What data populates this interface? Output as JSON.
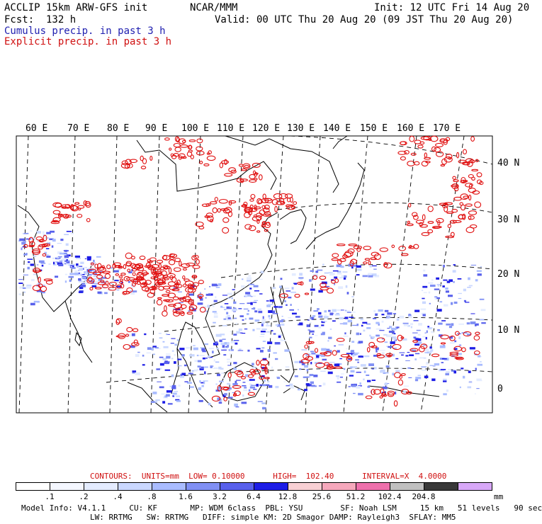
{
  "header": {
    "model_line": "ACCLIP 15km ARW-GFS init",
    "org": "NCAR/MMM",
    "init": "Init: 12 UTC Fri 14 Aug 20",
    "fcst": "Fcst:  132 h",
    "valid": "Valid: 00 UTC Thu 20 Aug 20 (09 JST Thu 20 Aug 20)",
    "cumulus": "Cumulus precip. in past 3 h",
    "explicit": "Explicit precip. in past 3 h"
  },
  "colors": {
    "cumulus": "#2f2fc8",
    "explicit": "#e01010",
    "coast": "#000000",
    "grid": "#000000"
  },
  "map": {
    "lon_labels": [
      "60 E",
      "70 E",
      "80 E",
      "90 E",
      "100 E",
      "110 E",
      "120 E",
      "130 E",
      "140 E",
      "150 E",
      "160 E",
      "170 E"
    ],
    "lat_labels": [
      "40 N",
      "30 N",
      "20 N",
      "10 N",
      "0"
    ]
  },
  "contours": {
    "line": "CONTOURS:  UNITS=mm  LOW= 0.10000      HIGH=  102.40      INTERVAL=X  4.0000"
  },
  "colorbar": {
    "unit": "mm",
    "labels": [
      ".1",
      ".2",
      ".4",
      ".8",
      "1.6",
      "3.2",
      "6.4",
      "12.8",
      "25.6",
      "51.2",
      "102.4",
      "204.8"
    ],
    "colors": [
      "#ffffff",
      "#f4f7ff",
      "#e4ecff",
      "#cad8ff",
      "#a9bcff",
      "#8090f4",
      "#5860ec",
      "#1d1de6",
      "#f8d0d4",
      "#f6a8bc",
      "#ee70ac",
      "#c0c0c0",
      "#383838",
      "#d8a8f8"
    ]
  },
  "footer": {
    "line1": "Model Info: V4.1.1     CU: KF       MP: WDM 6class  PBL: YSU        SF: Noah LSM     15 km   51 levels   90 sec",
    "line2": "LW: RRTMG   SW: RRTMG   DIFF: simple KM: 2D Smagor DAMP: Rayleigh3  SFLAY: MM5"
  }
}
